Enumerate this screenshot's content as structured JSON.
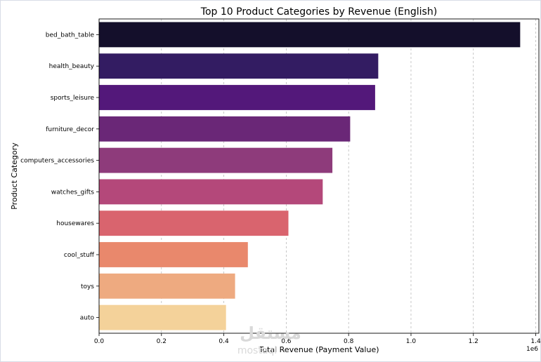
{
  "chart_data": {
    "type": "bar",
    "orientation": "horizontal",
    "title": "Top 10 Product Categories by Revenue (English)",
    "xlabel": "Total Revenue (Payment Value)",
    "ylabel": "Product Category",
    "x_scale_note": "1e6",
    "xlim": [
      0,
      1.41
    ],
    "x_ticks": [
      "0.0",
      "0.2",
      "0.4",
      "0.6",
      "0.8",
      "1.0",
      "1.2",
      "1.4"
    ],
    "x_tick_values": [
      0,
      0.2,
      0.4,
      0.6,
      0.8,
      1.0,
      1.2,
      1.4
    ],
    "grid": "vertical dashed",
    "categories": [
      "bed_bath_table",
      "health_beauty",
      "sports_leisure",
      "furniture_decor",
      "computers_accessories",
      "watches_gifts",
      "housewares",
      "cool_stuff",
      "toys",
      "auto"
    ],
    "values": [
      1.35,
      0.895,
      0.885,
      0.805,
      0.748,
      0.717,
      0.607,
      0.477,
      0.436,
      0.407
    ],
    "colors": [
      "#140f2b",
      "#331c62",
      "#53187a",
      "#6a2777",
      "#8e3b7b",
      "#b4487a",
      "#d9646e",
      "#e9886c",
      "#eeaa80",
      "#f4d29a"
    ]
  },
  "watermark": {
    "arabic": "مستقل",
    "latin": "mostaql"
  }
}
